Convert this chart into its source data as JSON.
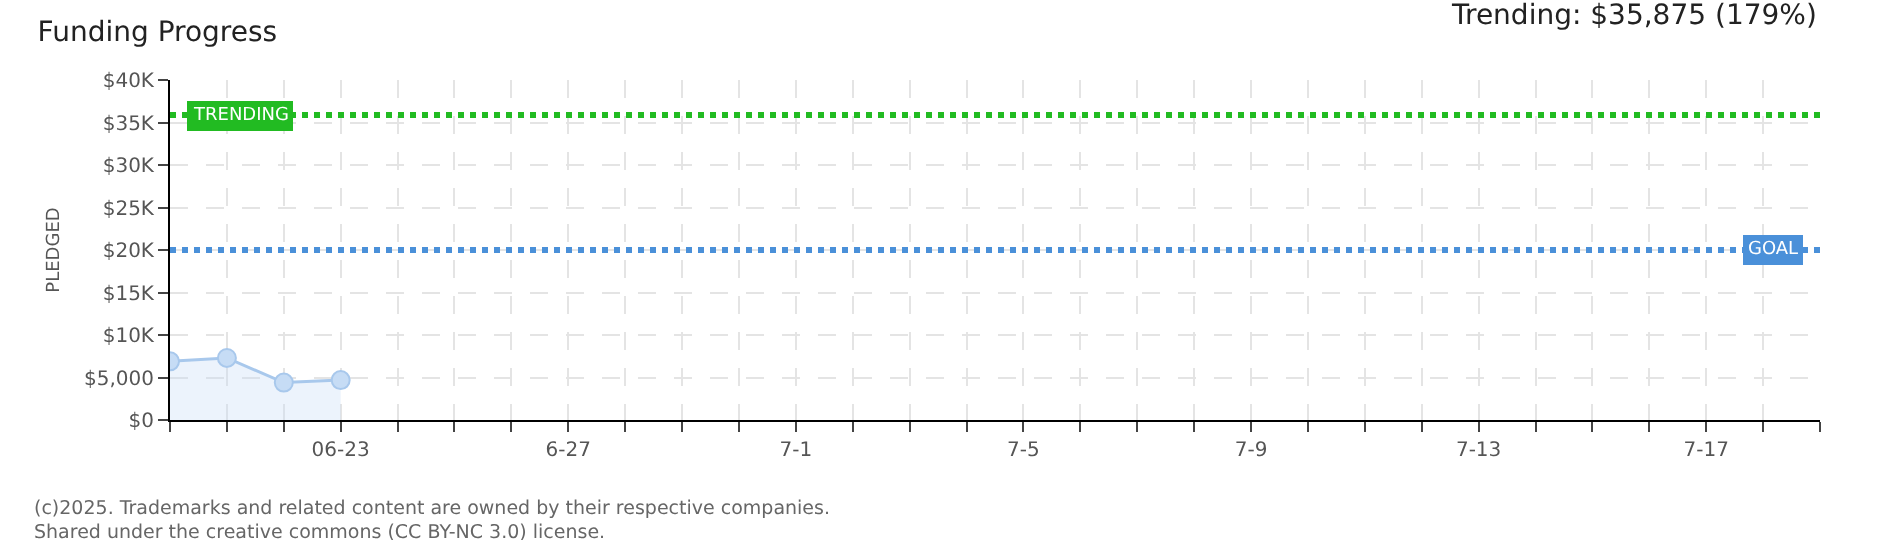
{
  "chart_data": {
    "type": "area",
    "title": "Funding Progress",
    "subtitle": "Trending: $35,875 (179%)",
    "ylabel": "PLEDGED",
    "x": [
      "--06-20",
      "--06-21",
      "--06-22",
      "--06-23"
    ],
    "series": [
      {
        "color": "#a8c8ec",
        "values": [
          6900,
          7300,
          4400,
          4700
        ]
      }
    ],
    "marker": "circle",
    "grid": true,
    "xlim": [
      "--06-20",
      "--07-19"
    ],
    "xticks": [
      {
        "value": "--06-20",
        "label": null
      },
      {
        "value": "--06-21",
        "label": null
      },
      {
        "value": "--06-22",
        "label": null
      },
      {
        "value": "--06-23",
        "label": "06-23"
      },
      {
        "value": "--06-24",
        "label": null
      },
      {
        "value": "--06-25",
        "label": null
      },
      {
        "value": "--06-26",
        "label": null
      },
      {
        "value": "--06-27",
        "label": "6-27"
      },
      {
        "value": "--06-28",
        "label": null
      },
      {
        "value": "--06-29",
        "label": null
      },
      {
        "value": "--06-30",
        "label": null
      },
      {
        "value": "--07-01",
        "label": "7-1"
      },
      {
        "value": "--07-02",
        "label": null
      },
      {
        "value": "--07-03",
        "label": null
      },
      {
        "value": "--07-04",
        "label": null
      },
      {
        "value": "--07-05",
        "label": "7-5"
      },
      {
        "value": "--07-06",
        "label": null
      },
      {
        "value": "--07-07",
        "label": null
      },
      {
        "value": "--07-08",
        "label": null
      },
      {
        "value": "--07-09",
        "label": "7-9"
      },
      {
        "value": "--07-10",
        "label": null
      },
      {
        "value": "--07-11",
        "label": null
      },
      {
        "value": "--07-12",
        "label": null
      },
      {
        "value": "--07-13",
        "label": "7-13"
      },
      {
        "value": "--07-14",
        "label": null
      },
      {
        "value": "--07-15",
        "label": null
      },
      {
        "value": "--07-16",
        "label": null
      },
      {
        "value": "--07-17",
        "label": "7-17"
      },
      {
        "value": "--07-18",
        "label": null
      },
      {
        "value": "--07-19",
        "label": null
      }
    ],
    "ylim": [
      0,
      40000
    ],
    "yticks": [
      {
        "value": 0,
        "label": "$0"
      },
      {
        "value": 5000,
        "label": "$5,000"
      },
      {
        "value": 10000,
        "label": "$10K"
      },
      {
        "value": 15000,
        "label": "$15K"
      },
      {
        "value": 20000,
        "label": "$20K"
      },
      {
        "value": 25000,
        "label": "$25K"
      },
      {
        "value": 30000,
        "label": "$30K"
      },
      {
        "value": 35000,
        "label": "$35K"
      },
      {
        "value": 40000,
        "label": "$40K"
      }
    ],
    "ref_lines": [
      {
        "axis": "y",
        "value": 35875,
        "label": "TRENDING",
        "color": "#22bb22",
        "line_style": "dotted"
      },
      {
        "axis": "y",
        "value": 20000,
        "label": "GOAL",
        "color": "#4a90d9",
        "line_style": "dotted"
      }
    ],
    "annotations": [
      "(c)2025. Trademarks and related content are owned by their respective companies.",
      "Shared under the creative commons (CC BY-NC 3.0) license."
    ]
  }
}
